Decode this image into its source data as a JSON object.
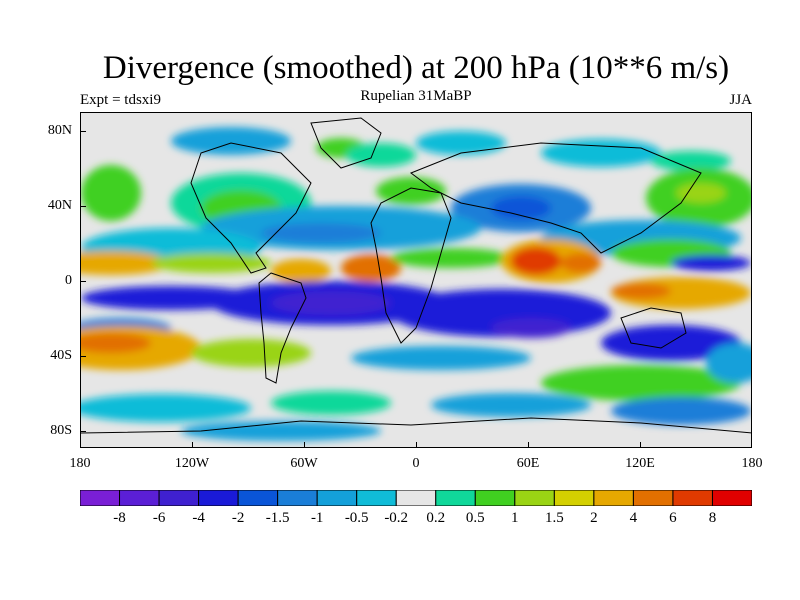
{
  "title": "Divergence (smoothed) at 200 hPa (10**6 m/s)",
  "subtitle": "Rupelian 31MaBP",
  "experiment": "Expt = tdsxi9",
  "season": "JJA",
  "y_axis_labels": [
    "80N",
    "40N",
    "0",
    "40S",
    "80S"
  ],
  "x_axis_labels": [
    "180",
    "120W",
    "60W",
    "0",
    "60E",
    "120E",
    "180"
  ],
  "colorbar": {
    "colors": [
      "#7a1fd6",
      "#5b1fd6",
      "#3f20d0",
      "#1a1ad8",
      "#0a55d8",
      "#1a7ed8",
      "#14a0da",
      "#10bcd8",
      "#e6e6e6",
      "#10d89a",
      "#40d020",
      "#9ad414",
      "#d4d000",
      "#e6a800",
      "#e27000",
      "#e03a00",
      "#e00000"
    ],
    "labels": [
      "-8",
      "-6",
      "-4",
      "-2",
      "-1.5",
      "-1",
      "-0.5",
      "-0.2",
      "0.2",
      "0.5",
      "1",
      "1.5",
      "2",
      "4",
      "6",
      "8"
    ]
  }
}
